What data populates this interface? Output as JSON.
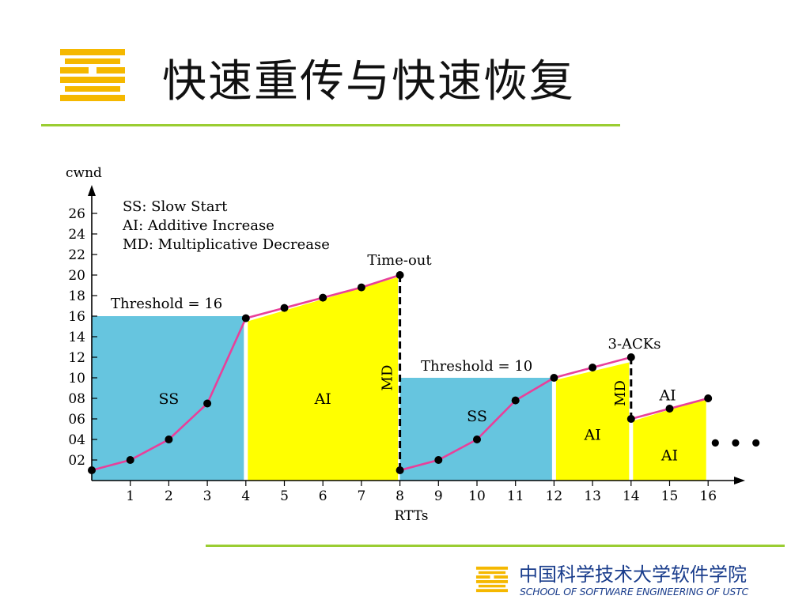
{
  "slide": {
    "title": "快速重传与快速恢复",
    "school_cn": "中国科学技术大学软件学院",
    "school_en": "SCHOOL OF SOFTWARE ENGINEERING OF USTC"
  },
  "colors": {
    "ss_fill": "#66c5df",
    "ai_fill": "#ffff00",
    "line": "#e8409a",
    "rule": "#9acd32",
    "logo": "#f5b800",
    "school_text": "#1a3d8c"
  },
  "chart_data": {
    "type": "line",
    "xlabel": "RTTs",
    "ylabel": "cwnd",
    "x_ticks": [
      "1",
      "2",
      "3",
      "4",
      "5",
      "6",
      "7",
      "8",
      "9",
      "10",
      "11",
      "12",
      "13",
      "14",
      "15",
      "16"
    ],
    "y_ticks": [
      "02",
      "04",
      "06",
      "08",
      "10",
      "12",
      "14",
      "16",
      "18",
      "20",
      "22",
      "24",
      "26"
    ],
    "xlim": [
      0,
      16
    ],
    "ylim": [
      0,
      26
    ],
    "series": [
      {
        "x": [
          0,
          1,
          2,
          3,
          4,
          5,
          6,
          7,
          8,
          8,
          9,
          10,
          11,
          12,
          13,
          14,
          14,
          15,
          16
        ],
        "y": [
          1,
          2,
          4,
          7.5,
          15.8,
          16.8,
          17.8,
          18.8,
          20,
          1,
          2,
          4,
          7.8,
          10,
          11,
          12,
          6,
          7,
          8
        ]
      }
    ],
    "regions": [
      {
        "label": "SS",
        "kind": "ss",
        "x0": 0,
        "x1": 4,
        "top": 16
      },
      {
        "label": "AI",
        "kind": "ai",
        "x0": 4,
        "x1": 8,
        "top_start": 15.5,
        "top_end": 19.8
      },
      {
        "label": "SS",
        "kind": "ss",
        "x0": 8,
        "x1": 12,
        "top": 10
      },
      {
        "label": "AI",
        "kind": "ai",
        "x0": 12,
        "x1": 14,
        "top_start": 9.8,
        "top_end": 11.5
      },
      {
        "label": "AI",
        "kind": "ai",
        "x0": 14,
        "x1": 16,
        "top_start": 5.8,
        "top_end": 8
      }
    ],
    "annotations": {
      "threshold1": "Threshold = 16",
      "threshold2": "Threshold = 10",
      "timeout": "Time-out",
      "three_acks": "3-ACKs",
      "md": "MD",
      "ai": "AI",
      "ellipsis": "• • •"
    },
    "legend": [
      "SS: Slow Start",
      "AI: Additive Increase",
      "MD: Multiplicative Decrease"
    ]
  }
}
